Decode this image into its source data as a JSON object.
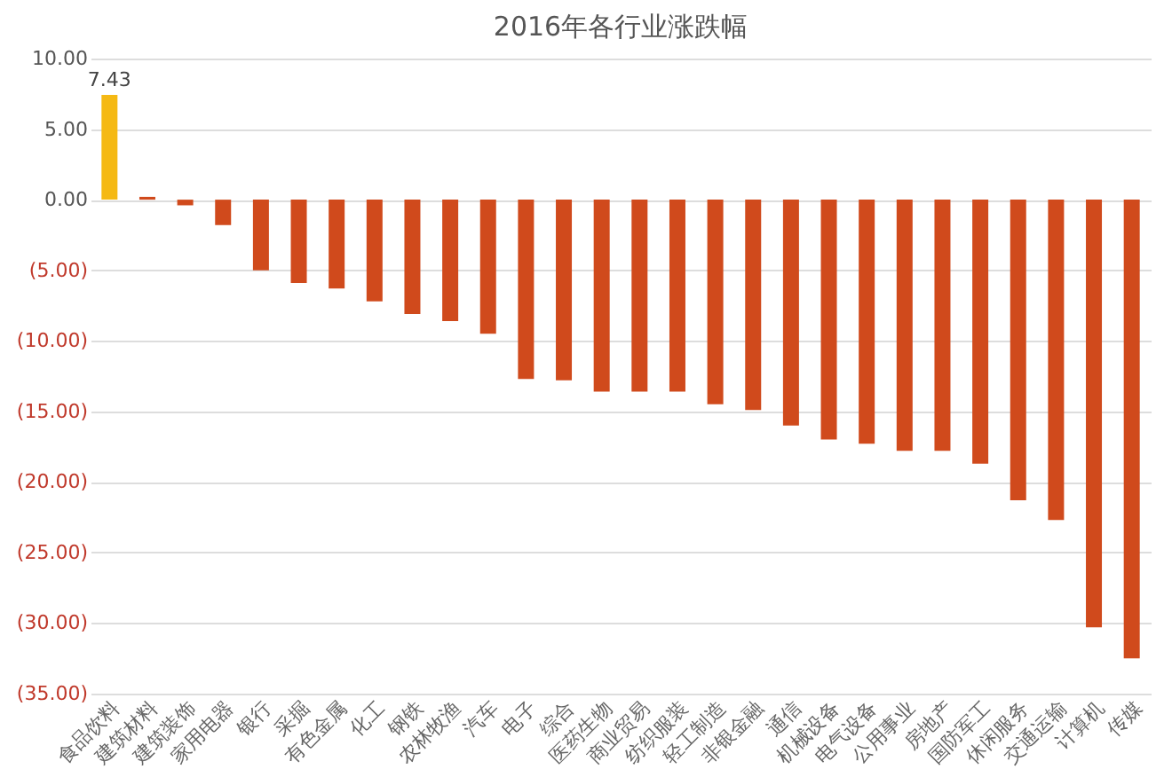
{
  "chart_data": {
    "type": "bar",
    "title": "2016年各行业涨跌幅",
    "categories": [
      "食品饮料",
      "建筑材料",
      "建筑装饰",
      "家用电器",
      "银行",
      "采掘",
      "有色金属",
      "化工",
      "钢铁",
      "农林牧渔",
      "汽车",
      "电子",
      "综合",
      "医药生物",
      "商业贸易",
      "纺织服装",
      "轻工制造",
      "非银金融",
      "通信",
      "机械设备",
      "电气设备",
      "公用事业",
      "房地产",
      "国防军工",
      "休闲服务",
      "交通运输",
      "计算机",
      "传媒"
    ],
    "values": [
      7.43,
      0.2,
      -0.4,
      -1.8,
      -5.0,
      -5.9,
      -6.3,
      -7.2,
      -8.1,
      -8.6,
      -9.5,
      -12.7,
      -12.8,
      -13.6,
      -13.6,
      -13.6,
      -14.5,
      -14.9,
      -16.0,
      -17.0,
      -17.3,
      -17.8,
      -17.8,
      -18.7,
      -21.3,
      -22.7,
      -30.3,
      -32.5
    ],
    "colors": [
      "#f5b914",
      "#d04a1c",
      "#d04a1c",
      "#d04a1c",
      "#d04a1c",
      "#d04a1c",
      "#d04a1c",
      "#d04a1c",
      "#d04a1c",
      "#d04a1c",
      "#d04a1c",
      "#d04a1c",
      "#d04a1c",
      "#d04a1c",
      "#d04a1c",
      "#d04a1c",
      "#d04a1c",
      "#d04a1c",
      "#d04a1c",
      "#d04a1c",
      "#d04a1c",
      "#d04a1c",
      "#d04a1c",
      "#d04a1c",
      "#d04a1c",
      "#d04a1c",
      "#d04a1c",
      "#d04a1c"
    ],
    "value_labels": [
      "7.43",
      null,
      null,
      null,
      null,
      null,
      null,
      null,
      null,
      null,
      null,
      null,
      null,
      null,
      null,
      null,
      null,
      null,
      null,
      null,
      null,
      null,
      null,
      null,
      null,
      null,
      null,
      null
    ],
    "ylim": [
      -35,
      10
    ],
    "yticks": [
      {
        "value": 10,
        "label": "10.00"
      },
      {
        "value": 5,
        "label": "5.00"
      },
      {
        "value": 0,
        "label": "0.00"
      },
      {
        "value": -5,
        "label": "(5.00)"
      },
      {
        "value": -10,
        "label": "(10.00)"
      },
      {
        "value": -15,
        "label": "(15.00)"
      },
      {
        "value": -20,
        "label": "(20.00)"
      },
      {
        "value": -25,
        "label": "(25.00)"
      },
      {
        "value": -30,
        "label": "(30.00)"
      },
      {
        "value": -35,
        "label": "(35.00)"
      }
    ],
    "grid": "y",
    "legend": false
  }
}
